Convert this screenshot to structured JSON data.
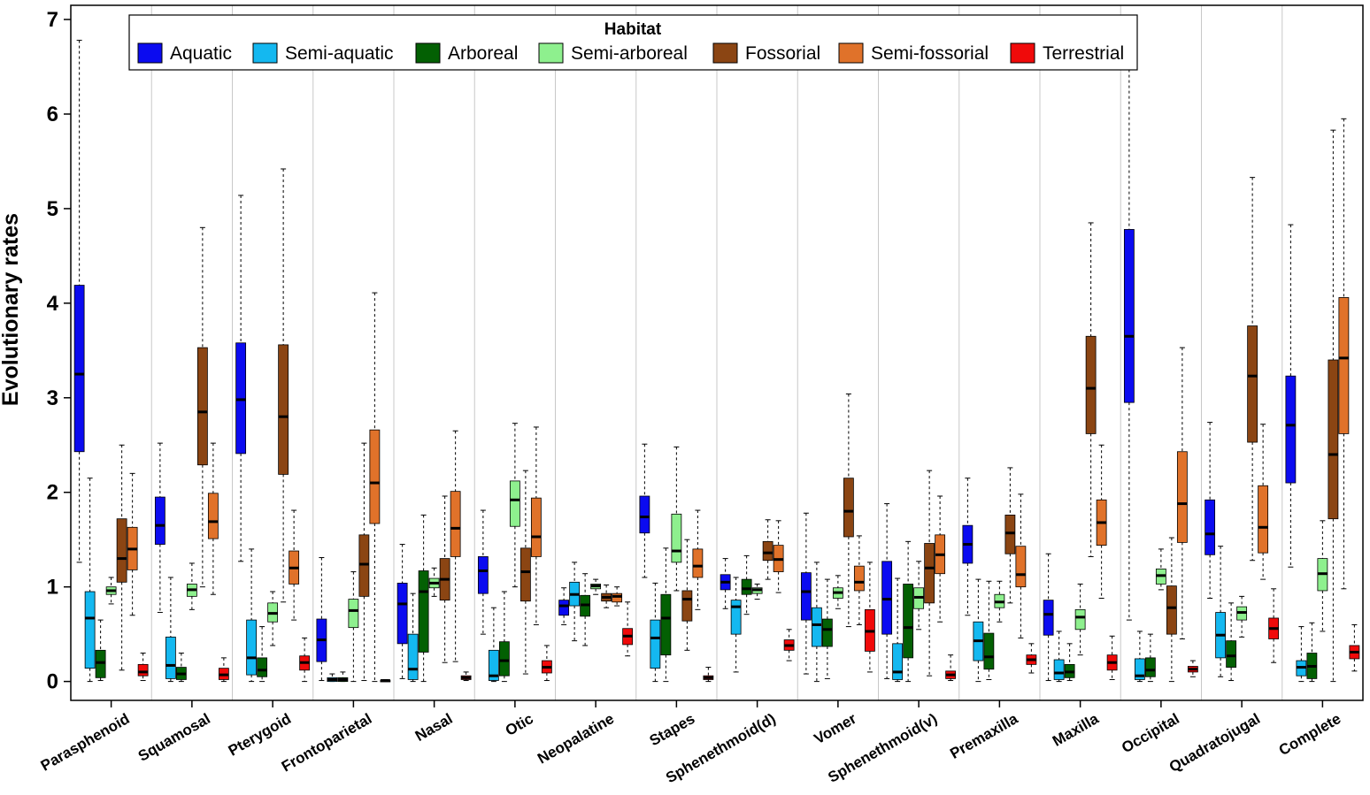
{
  "chart_data": {
    "type": "boxplot",
    "ylabel": "Evolutionary rates",
    "xlabel": "",
    "ylim": [
      -0.2,
      7.15
    ],
    "yticks": [
      0,
      1,
      2,
      3,
      4,
      5,
      6,
      7
    ],
    "grid": "vertical separators between categories",
    "legend": {
      "title": "Habitat",
      "placement": "top-center"
    },
    "series": [
      {
        "name": "Aquatic",
        "color": "#0b0bf0"
      },
      {
        "name": "Semi-aquatic",
        "color": "#14b8f0"
      },
      {
        "name": "Arboreal",
        "color": "#036003"
      },
      {
        "name": "Semi-arboreal",
        "color": "#8ef08e"
      },
      {
        "name": "Fossorial",
        "color": "#8b4513"
      },
      {
        "name": "Semi-fossorial",
        "color": "#e0722a"
      },
      {
        "name": "Terrestrial",
        "color": "#f00a0a"
      }
    ],
    "categories": [
      "Parasphenoid",
      "Squamosal",
      "Pterygoid",
      "Frontoparietal",
      "Nasal",
      "Otic",
      "Neopalatine",
      "Stapes",
      "Sphenethmoid(d)",
      "Vomer",
      "Sphenethmoid(v)",
      "Premaxilla",
      "Maxilla",
      "Occipital",
      "Quadratojugal",
      "Complete"
    ],
    "boxes": [
      [
        [
          1.26,
          2.43,
          3.25,
          4.19,
          6.78
        ],
        [
          0.0,
          0.14,
          0.67,
          0.95,
          2.15
        ],
        [
          0.01,
          0.04,
          0.2,
          0.33,
          0.65
        ],
        [
          0.82,
          0.92,
          0.96,
          1.0,
          1.1
        ],
        [
          0.12,
          1.05,
          1.3,
          1.72,
          2.5
        ],
        [
          0.7,
          1.18,
          1.4,
          1.63,
          2.2
        ],
        [
          0.01,
          0.06,
          0.1,
          0.18,
          0.3
        ]
      ],
      [
        [
          0.73,
          1.45,
          1.65,
          1.95,
          2.52
        ],
        [
          0.0,
          0.03,
          0.17,
          0.47,
          1.1
        ],
        [
          0.0,
          0.02,
          0.08,
          0.15,
          0.3
        ],
        [
          0.76,
          0.9,
          0.97,
          1.03,
          1.25
        ],
        [
          1.0,
          2.29,
          2.85,
          3.53,
          4.8
        ],
        [
          0.92,
          1.51,
          1.69,
          1.99,
          2.52
        ],
        [
          0.0,
          0.02,
          0.07,
          0.14,
          0.25
        ]
      ],
      [
        [
          1.27,
          2.41,
          2.98,
          3.58,
          5.14
        ],
        [
          0.0,
          0.07,
          0.25,
          0.65,
          1.4
        ],
        [
          0.0,
          0.05,
          0.12,
          0.25,
          0.58
        ],
        [
          0.38,
          0.63,
          0.72,
          0.83,
          0.95
        ],
        [
          0.84,
          2.19,
          2.8,
          3.56,
          5.42
        ],
        [
          0.65,
          1.03,
          1.2,
          1.38,
          1.81
        ],
        [
          0.0,
          0.12,
          0.2,
          0.27,
          0.46
        ]
      ],
      [
        [
          0.01,
          0.21,
          0.44,
          0.66,
          1.31
        ],
        [
          0.0,
          0.0,
          0.02,
          0.04,
          0.08
        ],
        [
          0.0,
          0.0,
          0.02,
          0.04,
          0.1
        ],
        [
          0.0,
          0.57,
          0.75,
          0.87,
          1.16
        ],
        [
          0.01,
          0.9,
          1.24,
          1.55,
          2.52
        ],
        [
          0.0,
          1.67,
          2.1,
          2.66,
          4.11
        ],
        [
          0.0,
          0.0,
          0.01,
          0.01,
          0.02
        ]
      ],
      [
        [
          0.03,
          0.4,
          0.82,
          1.04,
          1.45
        ],
        [
          0.0,
          0.02,
          0.13,
          0.5,
          0.93
        ],
        [
          0.0,
          0.31,
          0.95,
          1.17,
          1.76
        ],
        [
          0.9,
          0.99,
          1.04,
          1.09,
          1.2
        ],
        [
          0.2,
          0.86,
          1.08,
          1.3,
          1.96
        ],
        [
          0.21,
          1.32,
          1.62,
          2.01,
          2.65
        ],
        [
          0.01,
          0.02,
          0.04,
          0.06,
          0.1
        ]
      ],
      [
        [
          0.5,
          0.93,
          1.17,
          1.32,
          1.81
        ],
        [
          0.0,
          0.01,
          0.06,
          0.33,
          0.78
        ],
        [
          0.0,
          0.06,
          0.22,
          0.42,
          0.95
        ],
        [
          1.0,
          1.64,
          1.92,
          2.12,
          2.73
        ],
        [
          0.08,
          0.85,
          1.16,
          1.41,
          2.23
        ],
        [
          0.6,
          1.32,
          1.53,
          1.94,
          2.69
        ],
        [
          0.01,
          0.09,
          0.15,
          0.22,
          0.38
        ]
      ],
      [
        [
          0.6,
          0.7,
          0.8,
          0.86,
          0.99
        ],
        [
          0.43,
          0.8,
          0.92,
          1.05,
          1.26
        ],
        [
          0.38,
          0.69,
          0.81,
          0.91,
          1.14
        ],
        [
          0.92,
          0.98,
          1.01,
          1.03,
          1.08
        ],
        [
          0.78,
          0.85,
          0.89,
          0.93,
          1.02
        ],
        [
          0.8,
          0.84,
          0.9,
          0.93,
          1.0
        ],
        [
          0.27,
          0.39,
          0.48,
          0.56,
          0.84
        ]
      ],
      [
        [
          1.1,
          1.57,
          1.74,
          1.96,
          2.51
        ],
        [
          0.0,
          0.14,
          0.46,
          0.65,
          1.04
        ],
        [
          0.0,
          0.28,
          0.67,
          0.92,
          1.41
        ],
        [
          0.96,
          1.26,
          1.38,
          1.77,
          2.48
        ],
        [
          0.33,
          0.64,
          0.87,
          0.96,
          1.5
        ],
        [
          0.76,
          1.1,
          1.22,
          1.4,
          1.81
        ],
        [
          0.0,
          0.02,
          0.04,
          0.06,
          0.15
        ]
      ],
      [
        [
          0.77,
          0.97,
          1.05,
          1.13,
          1.3
        ],
        [
          0.1,
          0.5,
          0.79,
          0.86,
          1.1
        ],
        [
          0.71,
          0.92,
          0.98,
          1.08,
          1.33
        ],
        [
          0.87,
          0.93,
          0.97,
          0.99,
          1.03
        ],
        [
          1.08,
          1.28,
          1.36,
          1.48,
          1.71
        ],
        [
          0.94,
          1.16,
          1.29,
          1.44,
          1.7
        ],
        [
          0.22,
          0.33,
          0.38,
          0.44,
          0.55
        ]
      ],
      [
        [
          0.08,
          0.65,
          0.95,
          1.15,
          1.78
        ],
        [
          0.0,
          0.37,
          0.6,
          0.78,
          1.26
        ],
        [
          0.03,
          0.37,
          0.55,
          0.66,
          1.08
        ],
        [
          0.77,
          0.88,
          0.94,
          0.99,
          1.12
        ],
        [
          0.58,
          1.53,
          1.8,
          2.15,
          3.04
        ],
        [
          0.6,
          0.96,
          1.05,
          1.22,
          1.54
        ],
        [
          0.1,
          0.32,
          0.53,
          0.76,
          1.26
        ]
      ],
      [
        [
          0.03,
          0.5,
          0.87,
          1.27,
          1.88
        ],
        [
          0.0,
          0.02,
          0.1,
          0.4,
          1.09
        ],
        [
          0.0,
          0.25,
          0.57,
          1.03,
          1.48
        ],
        [
          0.55,
          0.77,
          0.89,
          0.99,
          1.27
        ],
        [
          0.06,
          0.83,
          1.2,
          1.46,
          2.23
        ],
        [
          0.63,
          1.14,
          1.34,
          1.55,
          1.96
        ],
        [
          0.01,
          0.03,
          0.07,
          0.11,
          0.28
        ]
      ],
      [
        [
          0.7,
          1.25,
          1.45,
          1.65,
          2.15
        ],
        [
          0.0,
          0.22,
          0.43,
          0.63,
          1.08
        ],
        [
          0.02,
          0.13,
          0.26,
          0.51,
          1.06
        ],
        [
          0.63,
          0.78,
          0.84,
          0.92,
          1.06
        ],
        [
          0.83,
          1.35,
          1.57,
          1.76,
          2.26
        ],
        [
          0.46,
          1.0,
          1.13,
          1.43,
          1.98
        ],
        [
          0.09,
          0.18,
          0.23,
          0.28,
          0.4
        ]
      ],
      [
        [
          0.01,
          0.49,
          0.71,
          0.86,
          1.35
        ],
        [
          0.0,
          0.02,
          0.09,
          0.23,
          0.53
        ],
        [
          0.01,
          0.04,
          0.1,
          0.18,
          0.4
        ],
        [
          0.28,
          0.55,
          0.68,
          0.76,
          1.03
        ],
        [
          1.32,
          2.62,
          3.1,
          3.65,
          4.85
        ],
        [
          0.88,
          1.44,
          1.68,
          1.92,
          2.5
        ],
        [
          0.02,
          0.12,
          0.2,
          0.28,
          0.48
        ]
      ],
      [
        [
          0.65,
          2.95,
          3.65,
          4.78,
          6.92
        ],
        [
          0.0,
          0.02,
          0.06,
          0.24,
          0.53
        ],
        [
          0.0,
          0.05,
          0.12,
          0.25,
          0.5
        ],
        [
          0.97,
          1.03,
          1.12,
          1.19,
          1.4
        ],
        [
          0.0,
          0.5,
          0.78,
          1.01,
          1.52
        ],
        [
          0.45,
          1.47,
          1.88,
          2.43,
          3.53
        ],
        [
          0.05,
          0.1,
          0.13,
          0.16,
          0.22
        ]
      ],
      [
        [
          0.88,
          1.34,
          1.56,
          1.92,
          2.74
        ],
        [
          0.05,
          0.25,
          0.49,
          0.73,
          1.43
        ],
        [
          0.01,
          0.15,
          0.27,
          0.43,
          0.83
        ],
        [
          0.47,
          0.65,
          0.73,
          0.79,
          0.9
        ],
        [
          1.28,
          2.53,
          3.23,
          3.76,
          5.33
        ],
        [
          1.08,
          1.36,
          1.63,
          2.07,
          2.72
        ],
        [
          0.2,
          0.45,
          0.56,
          0.67,
          0.98
        ]
      ],
      [
        [
          1.21,
          2.1,
          2.71,
          3.23,
          4.83
        ],
        [
          0.0,
          0.06,
          0.15,
          0.22,
          0.58
        ],
        [
          0.0,
          0.03,
          0.16,
          0.3,
          0.62
        ],
        [
          0.53,
          0.96,
          1.14,
          1.3,
          1.7
        ],
        [
          0.0,
          1.72,
          2.4,
          3.4,
          5.83
        ],
        [
          0.98,
          2.62,
          3.42,
          4.06,
          5.95
        ],
        [
          0.11,
          0.24,
          0.31,
          0.38,
          0.6
        ]
      ]
    ]
  }
}
